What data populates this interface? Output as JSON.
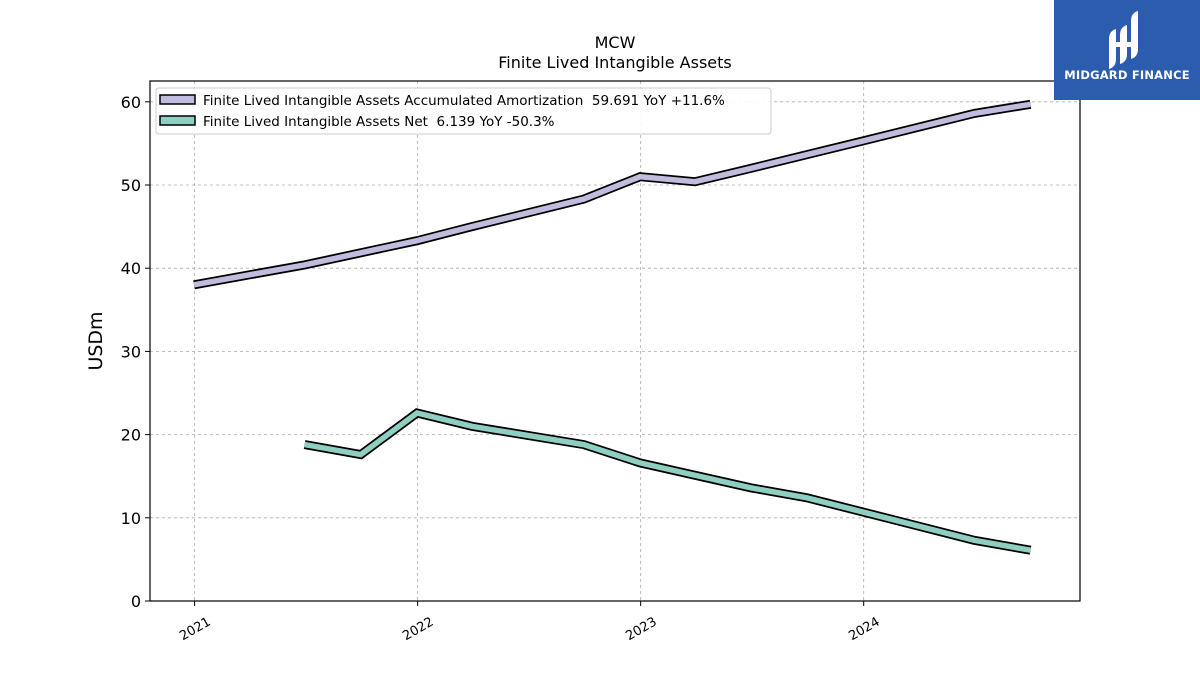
{
  "chart_data": {
    "type": "line",
    "title": "MCW",
    "subtitle": "Finite Lived Intangible Assets",
    "ylabel": "USDm",
    "xlabel": "",
    "ylim": [
      0,
      62.5
    ],
    "xlim": [
      "2020-10-20",
      "2024-12-20"
    ],
    "yticks": [
      0,
      10,
      20,
      30,
      40,
      50,
      60
    ],
    "xticks": [
      {
        "date": "2021-01-01",
        "label": "2021"
      },
      {
        "date": "2022-01-01",
        "label": "2022"
      },
      {
        "date": "2023-01-01",
        "label": "2023"
      },
      {
        "date": "2024-01-01",
        "label": "2024"
      }
    ],
    "grid": true,
    "legend_position": "top-left",
    "series": [
      {
        "name": "Finite Lived Intangible Assets Accumulated Amortization  59.691 YoY +11.6%",
        "color": "#c0bcdd",
        "points": [
          [
            "2020-12-31",
            38.0
          ],
          [
            "2021-06-30",
            40.4
          ],
          [
            "2021-12-31",
            43.3
          ],
          [
            "2022-03-31",
            45.0
          ],
          [
            "2022-09-30",
            48.3
          ],
          [
            "2022-12-31",
            51.0
          ],
          [
            "2023-03-31",
            50.4
          ],
          [
            "2023-06-30",
            52.0
          ],
          [
            "2023-12-31",
            55.3
          ],
          [
            "2024-06-30",
            58.6
          ],
          [
            "2024-09-30",
            59.7
          ]
        ]
      },
      {
        "name": "Finite Lived Intangible Assets Net  6.139 YoY -50.3%",
        "color": "#8ecfc1",
        "points": [
          [
            "2021-06-30",
            18.8
          ],
          [
            "2021-09-30",
            17.6
          ],
          [
            "2021-12-31",
            22.6
          ],
          [
            "2022-03-31",
            21.0
          ],
          [
            "2022-09-30",
            18.8
          ],
          [
            "2022-12-31",
            16.6
          ],
          [
            "2023-06-30",
            13.6
          ],
          [
            "2023-09-30",
            12.4
          ],
          [
            "2024-06-30",
            7.3
          ],
          [
            "2024-09-30",
            6.1
          ]
        ]
      }
    ]
  },
  "logo": {
    "text": "MIDGARD FINANCE",
    "background": "#2b5cad"
  }
}
